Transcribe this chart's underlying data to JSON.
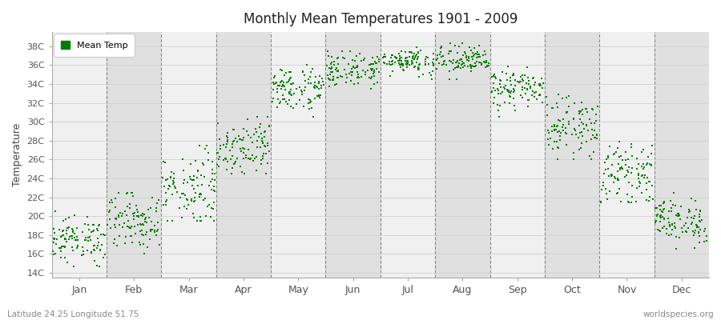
{
  "title": "Monthly Mean Temperatures 1901 - 2009",
  "ylabel": "Temperature",
  "xlabel_months": [
    "Jan",
    "Feb",
    "Mar",
    "Apr",
    "May",
    "Jun",
    "Jul",
    "Aug",
    "Sep",
    "Oct",
    "Nov",
    "Dec"
  ],
  "subtitle_left": "Latitude 24.25 Longitude 51.75",
  "subtitle_right": "worldspecies.org",
  "legend_label": "Mean Temp",
  "dot_color": "#008000",
  "background_color": "#ffffff",
  "stripe_color_even": "#f0f0f0",
  "stripe_color_odd": "#e0e0e0",
  "ytick_labels": [
    "14C",
    "16C",
    "18C",
    "20C",
    "22C",
    "24C",
    "26C",
    "28C",
    "30C",
    "32C",
    "34C",
    "36C",
    "38C"
  ],
  "ytick_values": [
    14,
    16,
    18,
    20,
    22,
    24,
    26,
    28,
    30,
    32,
    34,
    36,
    38
  ],
  "ylim": [
    13.5,
    39.5
  ],
  "num_years": 109,
  "monthly_means": [
    17.5,
    19.5,
    23.0,
    27.5,
    33.5,
    35.5,
    36.5,
    36.5,
    33.5,
    29.5,
    24.5,
    19.5
  ],
  "monthly_stds": [
    1.2,
    1.5,
    2.0,
    1.5,
    1.2,
    0.9,
    0.7,
    0.8,
    1.0,
    1.5,
    1.5,
    1.2
  ],
  "monthly_mins": [
    14.0,
    16.0,
    19.5,
    24.5,
    30.5,
    33.5,
    34.5,
    34.5,
    30.5,
    26.0,
    21.5,
    16.0
  ],
  "monthly_maxs": [
    20.5,
    22.5,
    27.5,
    30.5,
    36.5,
    37.5,
    38.5,
    38.5,
    36.0,
    34.5,
    30.5,
    22.5
  ]
}
